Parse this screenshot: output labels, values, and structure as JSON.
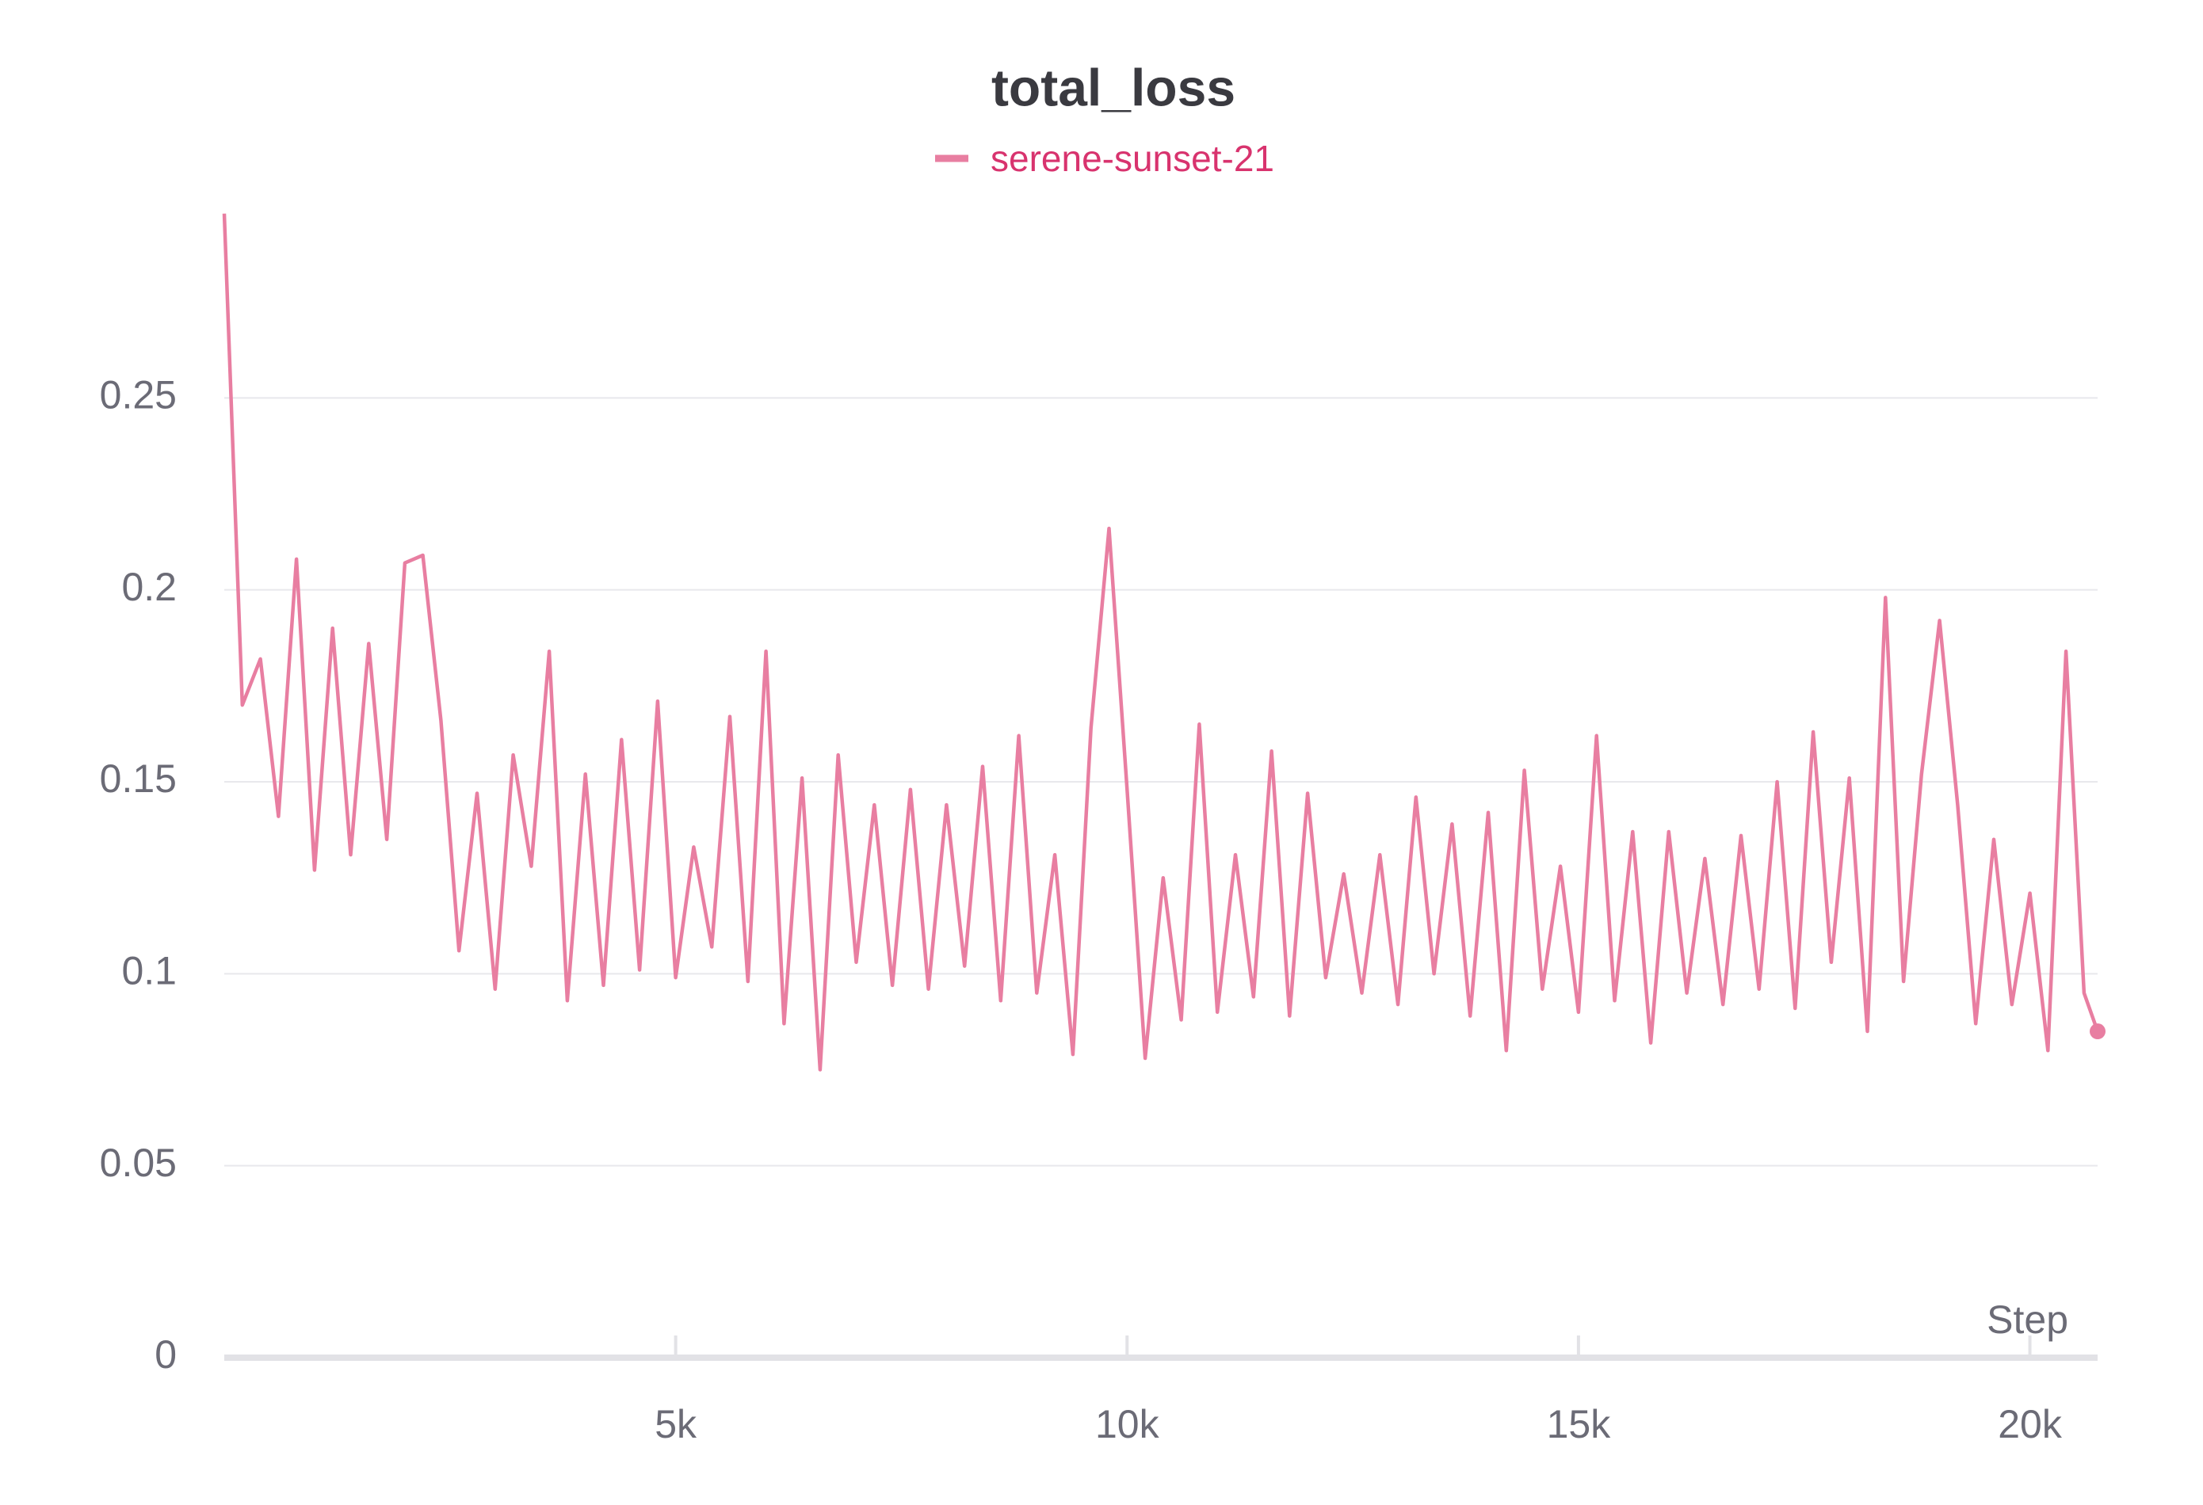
{
  "chart_data": {
    "type": "line",
    "title": "total_loss",
    "x_label": "Step",
    "x": [
      0,
      200,
      400,
      600,
      800,
      1000,
      1200,
      1400,
      1600,
      1800,
      2000,
      2200,
      2400,
      2600,
      2800,
      3000,
      3200,
      3400,
      3600,
      3800,
      4000,
      4200,
      4400,
      4600,
      4800,
      5000,
      5200,
      5400,
      5600,
      5800,
      6000,
      6200,
      6400,
      6600,
      6800,
      7000,
      7200,
      7400,
      7600,
      7800,
      8000,
      8200,
      8400,
      8600,
      8800,
      9000,
      9200,
      9400,
      9600,
      9800,
      10000,
      10200,
      10400,
      10600,
      10800,
      11000,
      11200,
      11400,
      11600,
      11800,
      12000,
      12200,
      12400,
      12600,
      12800,
      13000,
      13200,
      13400,
      13600,
      13800,
      14000,
      14200,
      14400,
      14600,
      14800,
      15000,
      15200,
      15400,
      15600,
      15800,
      16000,
      16200,
      16400,
      16600,
      16800,
      17000,
      17200,
      17400,
      17600,
      17800,
      18000,
      18200,
      18400,
      18600,
      18800,
      19000,
      19200,
      19400,
      19600,
      19800,
      20000,
      20200,
      20400,
      20600,
      20750
    ],
    "series": [
      {
        "name": "serene-sunset-21",
        "color": "#e87ea1",
        "values": [
          0.298,
          0.17,
          0.182,
          0.141,
          0.208,
          0.127,
          0.19,
          0.131,
          0.186,
          0.135,
          0.207,
          0.209,
          0.166,
          0.106,
          0.147,
          0.096,
          0.157,
          0.128,
          0.184,
          0.093,
          0.152,
          0.097,
          0.161,
          0.101,
          0.171,
          0.099,
          0.133,
          0.107,
          0.167,
          0.098,
          0.184,
          0.087,
          0.151,
          0.075,
          0.157,
          0.103,
          0.144,
          0.097,
          0.148,
          0.096,
          0.144,
          0.102,
          0.154,
          0.093,
          0.162,
          0.095,
          0.131,
          0.079,
          0.164,
          0.216,
          0.148,
          0.078,
          0.125,
          0.088,
          0.165,
          0.09,
          0.131,
          0.094,
          0.158,
          0.089,
          0.147,
          0.099,
          0.126,
          0.095,
          0.131,
          0.092,
          0.146,
          0.1,
          0.139,
          0.089,
          0.142,
          0.08,
          0.153,
          0.096,
          0.128,
          0.09,
          0.162,
          0.093,
          0.137,
          0.082,
          0.137,
          0.095,
          0.13,
          0.092,
          0.136,
          0.096,
          0.15,
          0.091,
          0.163,
          0.103,
          0.151,
          0.085,
          0.198,
          0.098,
          0.152,
          0.192,
          0.144,
          0.087,
          0.135,
          0.092,
          0.121,
          0.08,
          0.184,
          0.095,
          0.085
        ]
      }
    ],
    "xlim": [
      0,
      20750
    ],
    "ylim": [
      0,
      0.3
    ],
    "xticks": [
      {
        "value": 5000,
        "label": "5k"
      },
      {
        "value": 10000,
        "label": "10k"
      },
      {
        "value": 15000,
        "label": "15k"
      },
      {
        "value": 20000,
        "label": "20k"
      }
    ],
    "yticks": [
      0,
      0.05,
      0.1,
      0.15,
      0.2,
      0.25
    ],
    "grid": true
  }
}
